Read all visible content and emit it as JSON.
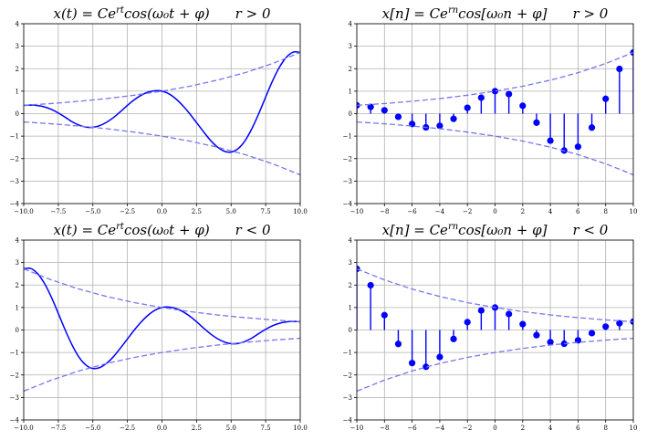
{
  "chart_data": [
    {
      "type": "line",
      "title": "x(t) = Ce^{rt}cos(ω₀t + φ)        r > 0",
      "title_parts": {
        "lhs": "x(t) = Ce",
        "sup": "rt",
        "rhs": "cos(ω₀t + φ)",
        "cond": "r > 0"
      },
      "xlim": [
        -10,
        10
      ],
      "ylim": [
        -4,
        4
      ],
      "xticks": [
        "−10.0",
        "−7.5",
        "−5.0",
        "−2.5",
        "0.0",
        "2.5",
        "5.0",
        "7.5",
        "10.0"
      ],
      "yticks": [
        "−4",
        "−3",
        "−2",
        "−1",
        "0",
        "1",
        "2",
        "3",
        "4"
      ],
      "grid": true,
      "series": [
        {
          "role": "signal",
          "style": "solid",
          "color": "#0000ff",
          "x": [
            -10,
            -9.5,
            -9,
            -8.5,
            -8,
            -7.5,
            -7,
            -6.5,
            -6,
            -5.5,
            -5,
            -4.5,
            -4,
            -3.5,
            -3,
            -2.5,
            -2,
            -1.5,
            -1,
            -0.5,
            0,
            0.5,
            1,
            1.5,
            2,
            2.5,
            3,
            3.5,
            4,
            4.5,
            5,
            5.5,
            6,
            6.5,
            7,
            7.5,
            8,
            8.5,
            9,
            9.5,
            10
          ],
          "y": [
            0.37,
            0.38,
            0.36,
            0.3,
            0.19,
            0.03,
            -0.16,
            -0.36,
            -0.51,
            -0.6,
            -0.61,
            -0.53,
            -0.38,
            -0.17,
            0.09,
            0.37,
            0.62,
            0.82,
            0.96,
            1.02,
            1.0,
            0.88,
            0.66,
            0.36,
            0.0,
            -0.4,
            -0.8,
            -1.18,
            -1.48,
            -1.67,
            -1.71,
            -1.56,
            -1.21,
            -0.67,
            0.0,
            0.74,
            1.46,
            2.07,
            2.51,
            2.74,
            2.72
          ]
        },
        {
          "role": "envelope-upper",
          "style": "dashed",
          "color": "#7777ee",
          "x": [
            -10,
            -8,
            -6,
            -4,
            -2,
            0,
            2,
            4,
            6,
            8,
            10
          ],
          "y": [
            0.37,
            0.45,
            0.55,
            0.67,
            0.82,
            1.0,
            1.22,
            1.49,
            1.82,
            2.23,
            2.72
          ]
        },
        {
          "role": "envelope-lower",
          "style": "dashed",
          "color": "#7777ee",
          "x": [
            -10,
            -8,
            -6,
            -4,
            -2,
            0,
            2,
            4,
            6,
            8,
            10
          ],
          "y": [
            -0.37,
            -0.45,
            -0.55,
            -0.67,
            -0.82,
            -1.0,
            -1.22,
            -1.49,
            -1.82,
            -2.23,
            -2.72
          ]
        }
      ]
    },
    {
      "type": "stem",
      "title": "x[n] = Ce^{rn}cos[ω₀n + φ]        r > 0",
      "title_parts": {
        "lhs": "x[n] = Ce",
        "sup": "rn",
        "rhs": "cos[ω₀n + φ]",
        "cond": "r > 0"
      },
      "xlim": [
        -10,
        10
      ],
      "ylim": [
        -4,
        4
      ],
      "xticks": [
        "−10",
        "−8",
        "−6",
        "−4",
        "−2",
        "0",
        "2",
        "4",
        "6",
        "8",
        "10"
      ],
      "yticks": [
        "−4",
        "−3",
        "−2",
        "−1",
        "0",
        "1",
        "2",
        "3",
        "4"
      ],
      "grid": true,
      "series": [
        {
          "role": "samples",
          "style": "stem",
          "color": "#0000ff",
          "x": [
            -10,
            -9,
            -8,
            -7,
            -6,
            -5,
            -4,
            -3,
            -2,
            -1,
            0,
            1,
            2,
            3,
            4,
            5,
            6,
            7,
            8,
            9,
            10
          ],
          "y": [
            0.37,
            0.3,
            0.15,
            -0.14,
            -0.46,
            -0.61,
            -0.54,
            -0.23,
            0.26,
            0.71,
            1.0,
            0.87,
            0.35,
            -0.4,
            -1.2,
            -1.64,
            -1.47,
            -0.62,
            0.66,
            1.99,
            2.72
          ]
        },
        {
          "role": "envelope-upper",
          "style": "dashed",
          "color": "#7777ee",
          "x": [
            -10,
            -8,
            -6,
            -4,
            -2,
            0,
            2,
            4,
            6,
            8,
            10
          ],
          "y": [
            0.37,
            0.45,
            0.55,
            0.67,
            0.82,
            1.0,
            1.22,
            1.49,
            1.82,
            2.23,
            2.72
          ]
        },
        {
          "role": "envelope-lower",
          "style": "dashed",
          "color": "#7777ee",
          "x": [
            -10,
            -8,
            -6,
            -4,
            -2,
            0,
            2,
            4,
            6,
            8,
            10
          ],
          "y": [
            -0.37,
            -0.45,
            -0.55,
            -0.67,
            -0.82,
            -1.0,
            -1.22,
            -1.49,
            -1.82,
            -2.23,
            -2.72
          ]
        }
      ]
    },
    {
      "type": "line",
      "title": "x(t) = Ce^{rt}cos(ω₀t + φ)        r < 0",
      "title_parts": {
        "lhs": "x(t) = Ce",
        "sup": "rt",
        "rhs": "cos(ω₀t + φ)",
        "cond": "r < 0"
      },
      "xlim": [
        -10,
        10
      ],
      "ylim": [
        -4,
        4
      ],
      "xticks": [
        "−10.0",
        "−7.5",
        "−5.0",
        "−2.5",
        "0.0",
        "2.5",
        "5.0",
        "7.5",
        "10.0"
      ],
      "yticks": [
        "−4",
        "−3",
        "−2",
        "−1",
        "0",
        "1",
        "2",
        "3",
        "4"
      ],
      "grid": true,
      "series": [
        {
          "role": "signal",
          "style": "solid",
          "color": "#0000ff",
          "x": [
            -10,
            -9.5,
            -9,
            -8.5,
            -8,
            -7.5,
            -7,
            -6.5,
            -6,
            -5.5,
            -5,
            -4.5,
            -4,
            -3.5,
            -3,
            -2.5,
            -2,
            -1.5,
            -1,
            -0.5,
            0,
            0.5,
            1,
            1.5,
            2,
            2.5,
            3,
            3.5,
            4,
            4.5,
            5,
            5.5,
            6,
            6.5,
            7,
            7.5,
            8,
            8.5,
            9,
            9.5,
            10
          ],
          "y": [
            2.72,
            2.74,
            2.51,
            2.07,
            1.46,
            0.74,
            0.0,
            -0.67,
            -1.21,
            -1.56,
            -1.71,
            -1.67,
            -1.48,
            -1.18,
            -0.8,
            -0.4,
            0.0,
            0.36,
            0.66,
            0.88,
            1.0,
            1.02,
            0.96,
            0.82,
            0.62,
            0.37,
            0.09,
            -0.17,
            -0.38,
            -0.53,
            -0.61,
            -0.6,
            -0.51,
            -0.36,
            -0.16,
            0.03,
            0.19,
            0.3,
            0.36,
            0.38,
            0.37
          ]
        },
        {
          "role": "envelope-upper",
          "style": "dashed",
          "color": "#7777ee",
          "x": [
            -10,
            -8,
            -6,
            -4,
            -2,
            0,
            2,
            4,
            6,
            8,
            10
          ],
          "y": [
            2.72,
            2.23,
            1.82,
            1.49,
            1.22,
            1.0,
            0.82,
            0.67,
            0.55,
            0.45,
            0.37
          ]
        },
        {
          "role": "envelope-lower",
          "style": "dashed",
          "color": "#7777ee",
          "x": [
            -10,
            -8,
            -6,
            -4,
            -2,
            0,
            2,
            4,
            6,
            8,
            10
          ],
          "y": [
            -2.72,
            -2.23,
            -1.82,
            -1.49,
            -1.22,
            -1.0,
            -0.82,
            -0.67,
            -0.55,
            -0.45,
            -0.37
          ]
        }
      ]
    },
    {
      "type": "stem",
      "title": "x[n] = Ce^{rn}cos[ω₀n + φ]        r < 0",
      "title_parts": {
        "lhs": "x[n] = Ce",
        "sup": "rn",
        "rhs": "cos[ω₀n + φ]",
        "cond": "r < 0"
      },
      "xlim": [
        -10,
        10
      ],
      "ylim": [
        -4,
        4
      ],
      "xticks": [
        "−10",
        "−8",
        "−6",
        "−4",
        "−2",
        "0",
        "2",
        "4",
        "6",
        "8",
        "10"
      ],
      "yticks": [
        "−4",
        "−3",
        "−2",
        "−1",
        "0",
        "1",
        "2",
        "3",
        "4"
      ],
      "grid": true,
      "series": [
        {
          "role": "samples",
          "style": "stem",
          "color": "#0000ff",
          "x": [
            -10,
            -9,
            -8,
            -7,
            -6,
            -5,
            -4,
            -3,
            -2,
            -1,
            0,
            1,
            2,
            3,
            4,
            5,
            6,
            7,
            8,
            9,
            10
          ],
          "y": [
            2.72,
            1.99,
            0.66,
            -0.62,
            -1.47,
            -1.64,
            -1.2,
            -0.4,
            0.35,
            0.87,
            1.0,
            0.71,
            0.26,
            -0.23,
            -0.54,
            -0.61,
            -0.46,
            -0.14,
            0.15,
            0.3,
            0.37
          ]
        },
        {
          "role": "envelope-upper",
          "style": "dashed",
          "color": "#7777ee",
          "x": [
            -10,
            -8,
            -6,
            -4,
            -2,
            0,
            2,
            4,
            6,
            8,
            10
          ],
          "y": [
            2.72,
            2.23,
            1.82,
            1.49,
            1.22,
            1.0,
            0.82,
            0.67,
            0.55,
            0.45,
            0.37
          ]
        },
        {
          "role": "envelope-lower",
          "style": "dashed",
          "color": "#7777ee",
          "x": [
            -10,
            -8,
            -6,
            -4,
            -2,
            0,
            2,
            4,
            6,
            8,
            10
          ],
          "y": [
            -2.72,
            -2.23,
            -1.82,
            -1.49,
            -1.22,
            -1.0,
            -0.82,
            -0.67,
            -0.55,
            -0.45,
            -0.37
          ]
        }
      ]
    }
  ]
}
